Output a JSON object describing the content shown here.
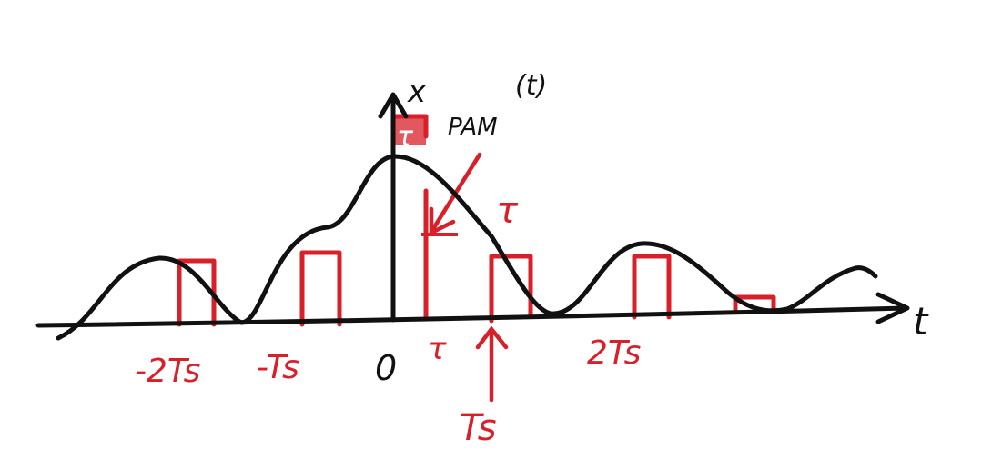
{
  "axes": {
    "y_label_main": "x",
    "y_label_sub": "PAM",
    "y_label_arg": "(t)",
    "x_label": "t",
    "origin_label": "0"
  },
  "pulse_labels": {
    "minus_two_ts": "-2Ts",
    "minus_ts": "-Ts",
    "tau": "τ",
    "ts": "Ts",
    "two_ts": "2Ts"
  },
  "tau_annotations": {
    "top": "τ",
    "right": "τ"
  },
  "colors": {
    "signal": "#111111",
    "pulses": "#d8202a"
  }
}
